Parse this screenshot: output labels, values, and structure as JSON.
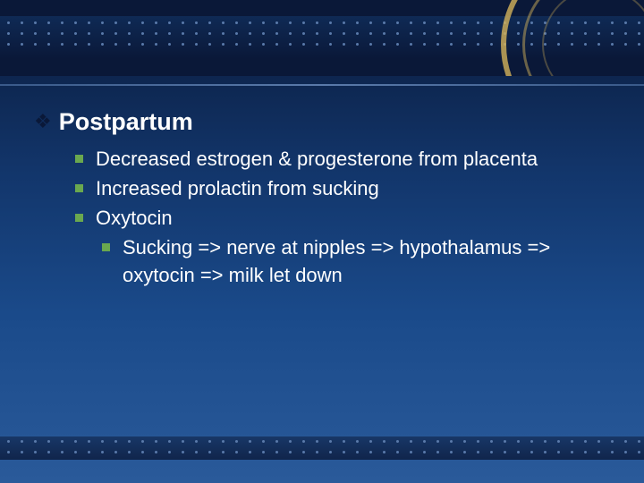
{
  "slide": {
    "heading": "Postpartum",
    "bullets": [
      {
        "text": "Decreased estrogen & progesterone from placenta"
      },
      {
        "text": "Increased prolactin from sucking"
      },
      {
        "text": "Oxytocin",
        "sub": [
          {
            "text": "Sucking => nerve at nipples => hypothalamus => oxytocin => milk let down"
          }
        ]
      }
    ]
  },
  "style": {
    "heading_color": "#ffffff",
    "heading_fontsize": 27,
    "body_fontsize": 22,
    "body_color": "#ffffff",
    "diamond_bullet_color": "#0a1838",
    "square_bullet_color": "#6aa84f",
    "background_gradient": [
      "#0a1a3a",
      "#12356a",
      "#1a4a8a",
      "#2a5a9a"
    ],
    "accent_arc_color": "#d4b25a",
    "font_family": "Verdana"
  }
}
